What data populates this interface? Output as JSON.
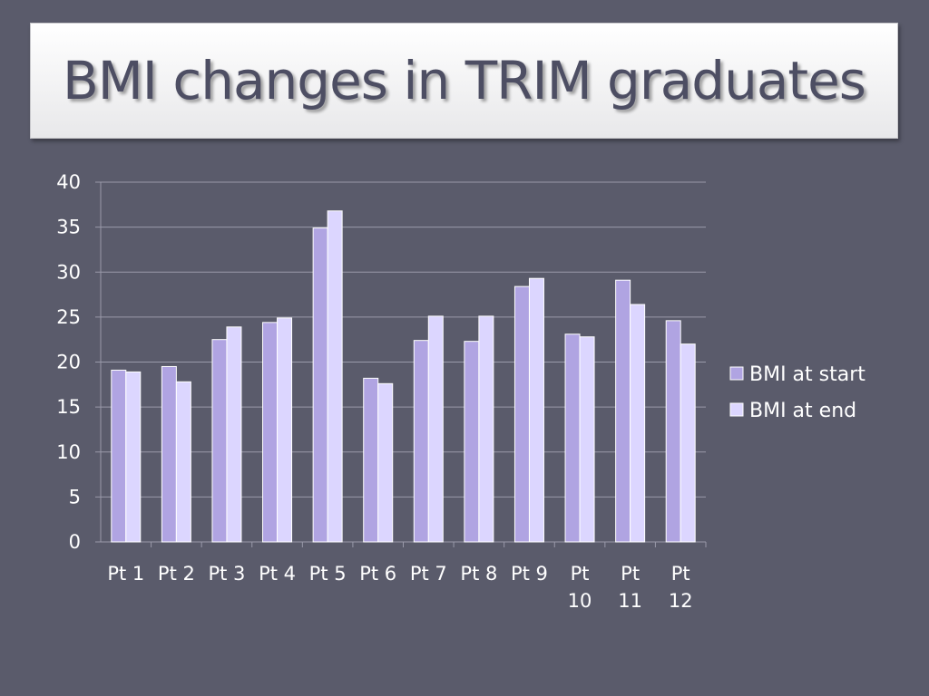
{
  "slide": {
    "title": "BMI changes in TRIM graduates"
  },
  "chart_data": {
    "type": "bar",
    "title": "",
    "xlabel": "",
    "ylabel": "",
    "ylim": [
      0,
      40
    ],
    "yticks": [
      0,
      5,
      10,
      15,
      20,
      25,
      30,
      35,
      40
    ],
    "grid": true,
    "legend_position": "right",
    "categories": [
      "Pt 1",
      "Pt 2",
      "Pt 3",
      "Pt 4",
      "Pt 5",
      "Pt 6",
      "Pt 7",
      "Pt 8",
      "Pt 9",
      "Pt 10",
      "Pt 11",
      "Pt 12"
    ],
    "series": [
      {
        "name": "BMI at start",
        "color": "#b0a4e2",
        "values": [
          19.1,
          19.5,
          22.5,
          24.4,
          34.9,
          18.2,
          22.4,
          22.3,
          28.4,
          23.1,
          29.1,
          24.6
        ]
      },
      {
        "name": "BMI at end",
        "color": "#dcd6ff",
        "values": [
          18.9,
          17.8,
          23.9,
          24.9,
          36.8,
          17.6,
          25.1,
          25.1,
          29.3,
          22.8,
          26.4,
          22.0
        ]
      }
    ]
  }
}
